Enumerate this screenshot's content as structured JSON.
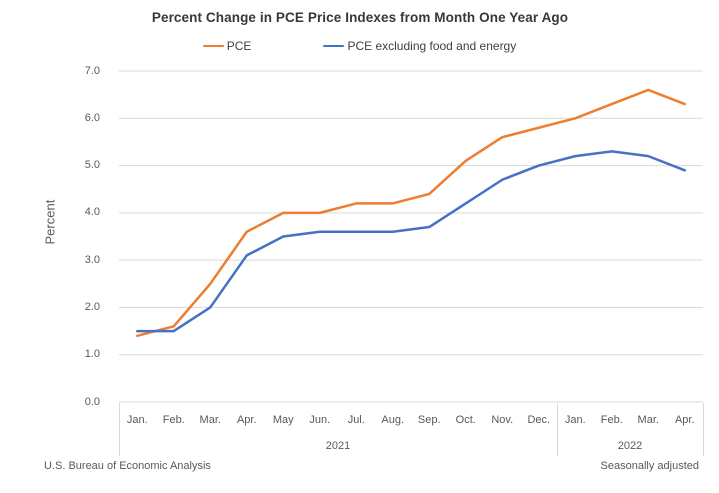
{
  "footer": {
    "left": "U.S. Bureau of Economic Analysis",
    "right": "Seasonally adjusted"
  },
  "chart_data": {
    "type": "line",
    "title": "Percent Change in PCE Price Indexes from Month One Year Ago",
    "xlabel": "",
    "ylabel": "Percent",
    "ylim": [
      0,
      7
    ],
    "y_tick_labels": [
      "0.0",
      "1.0",
      "2.0",
      "3.0",
      "4.0",
      "5.0",
      "6.0",
      "7.0"
    ],
    "grid": true,
    "gridline_color": "#d9d9d9",
    "legend_position": "top",
    "x_groups": [
      {
        "year": "2021",
        "months": [
          "Jan.",
          "Feb.",
          "Mar.",
          "Apr.",
          "May",
          "Jun.",
          "Jul.",
          "Aug.",
          "Sep.",
          "Oct.",
          "Nov.",
          "Dec."
        ]
      },
      {
        "year": "2022",
        "months": [
          "Jan.",
          "Feb.",
          "Mar.",
          "Apr."
        ]
      }
    ],
    "series": [
      {
        "name": "PCE",
        "color": "#ED7D31",
        "values": [
          1.4,
          1.6,
          2.5,
          3.6,
          4.0,
          4.0,
          4.2,
          4.2,
          4.4,
          5.1,
          5.6,
          5.8,
          6.0,
          6.3,
          6.6,
          6.3
        ]
      },
      {
        "name": "PCE excluding food and energy",
        "color": "#4472C4",
        "values": [
          1.5,
          1.5,
          2.0,
          3.1,
          3.5,
          3.6,
          3.6,
          3.6,
          3.7,
          4.2,
          4.7,
          5.0,
          5.2,
          5.3,
          5.2,
          4.9
        ]
      }
    ]
  }
}
